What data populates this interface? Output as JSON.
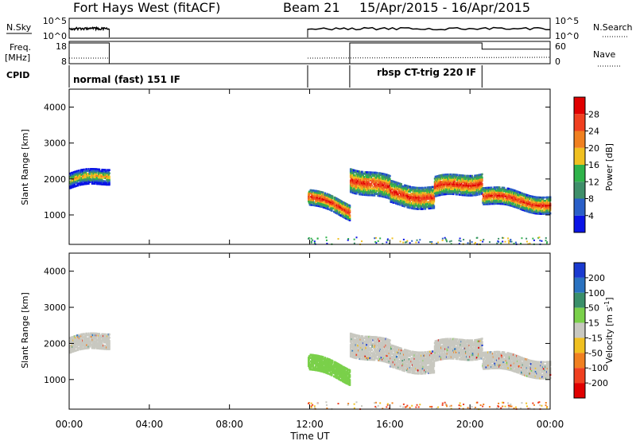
{
  "header": {
    "site": "Fort Hays West (fitACF)",
    "beam": "Beam 21",
    "date_range": "15/Apr/2015 - 16/Apr/2015"
  },
  "strip_labels": {
    "nsky": "N.Sky",
    "nsky_ticks": [
      "10^5",
      "10^0"
    ],
    "nsearch": "N.Search",
    "freq": "Freq.",
    "freq_unit": "[MHz]",
    "freq_ticks": [
      "18",
      "8"
    ],
    "nave": "Nave",
    "nave_ticks": [
      "60",
      "0"
    ],
    "cpid": "CPID",
    "cpid_modes": [
      "normal (fast) 151 IF",
      "rbsp CT-trig 220 IF"
    ]
  },
  "colors": {
    "power_scale": [
      "#0a14e6",
      "#2a5fc8",
      "#3f8f6a",
      "#2fb34a",
      "#f0c020",
      "#f08020",
      "#f04020",
      "#e00000"
    ],
    "velocity_scale": [
      "#1a3ad0",
      "#2a72c0",
      "#3a8f6a",
      "#7ad04a",
      "#c8c8c0",
      "#f0c020",
      "#f08020",
      "#f04020",
      "#e00000"
    ],
    "ground_scatter": "#c8c8c0"
  },
  "chart_data": {
    "type": "heatmap",
    "xlabel": "Time UT",
    "x_ticks": [
      "00:00",
      "04:00",
      "08:00",
      "12:00",
      "16:00",
      "20:00",
      "00:00"
    ],
    "x_range_hours": [
      0,
      24
    ],
    "panels": [
      {
        "quantity": "Power",
        "ylabel": "Slant Range [km]",
        "y_ticks": [
          "1000",
          "2000",
          "3000",
          "4000"
        ],
        "ylim": [
          180,
          4500
        ],
        "colorbar_label": "Power [dB]",
        "colorbar_ticks": [
          "4",
          "8",
          "12",
          "16",
          "20",
          "24",
          "28"
        ],
        "colorbar_range": [
          0,
          32
        ]
      },
      {
        "quantity": "Velocity",
        "ylabel": "Slant Range [km]",
        "y_ticks": [
          "1000",
          "2000",
          "3000",
          "4000"
        ],
        "ylim": [
          180,
          4500
        ],
        "colorbar_label": "Velocity [m s^-1]",
        "colorbar_ticks": [
          "200",
          "100",
          "50",
          "15",
          "-15",
          "-50",
          "-100",
          "-200"
        ]
      }
    ],
    "echo_bands": [
      {
        "t_start": 0.0,
        "t_end": 2.0,
        "center_km": [
          1950,
          2100
        ],
        "halfwidth_km": 220
      },
      {
        "t_start": 11.9,
        "t_end": 14.0,
        "center_km": [
          1500,
          1100
        ],
        "halfwidth_km": 220
      },
      {
        "t_start": 14.0,
        "t_end": 16.0,
        "center_km": [
          2000,
          1700
        ],
        "halfwidth_km": 320
      },
      {
        "t_start": 16.0,
        "t_end": 18.2,
        "center_km": [
          1600,
          1450
        ],
        "halfwidth_km": 300
      },
      {
        "t_start": 18.2,
        "t_end": 20.6,
        "center_km": [
          1750,
          1900
        ],
        "halfwidth_km": 280
      },
      {
        "t_start": 20.6,
        "t_end": 24.0,
        "center_km": [
          1550,
          1250
        ],
        "halfwidth_km": 230
      }
    ],
    "data_gap_hours": [
      2.0,
      11.9
    ],
    "cpid_switch_hours": [
      11.9,
      14.0,
      20.6
    ]
  }
}
